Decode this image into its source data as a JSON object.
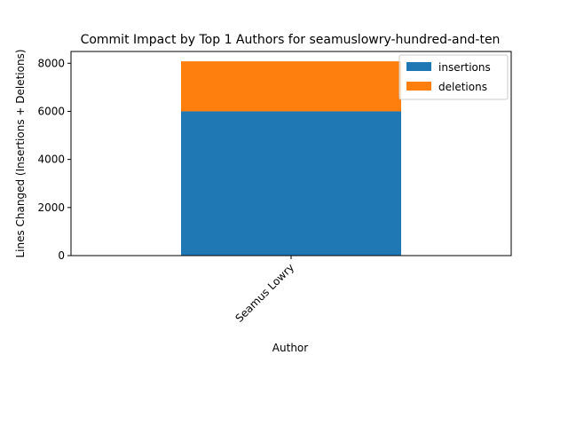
{
  "chart_data": {
    "type": "bar",
    "stacked": true,
    "title": "Commit Impact by Top 1 Authors for seamuslowry-hundred-and-ten",
    "xlabel": "Author",
    "ylabel": "Lines Changed (Insertions + Deletions)",
    "categories": [
      "Seamus Lowry"
    ],
    "series": [
      {
        "name": "insertions",
        "values": [
          6000
        ],
        "color": "#1f77b4"
      },
      {
        "name": "deletions",
        "values": [
          2080
        ],
        "color": "#ff7f0e"
      }
    ],
    "ylim": [
      0,
      8490
    ],
    "yticks": [
      0,
      2000,
      4000,
      6000,
      8000
    ],
    "grid": false,
    "legend_position": "top-right"
  }
}
